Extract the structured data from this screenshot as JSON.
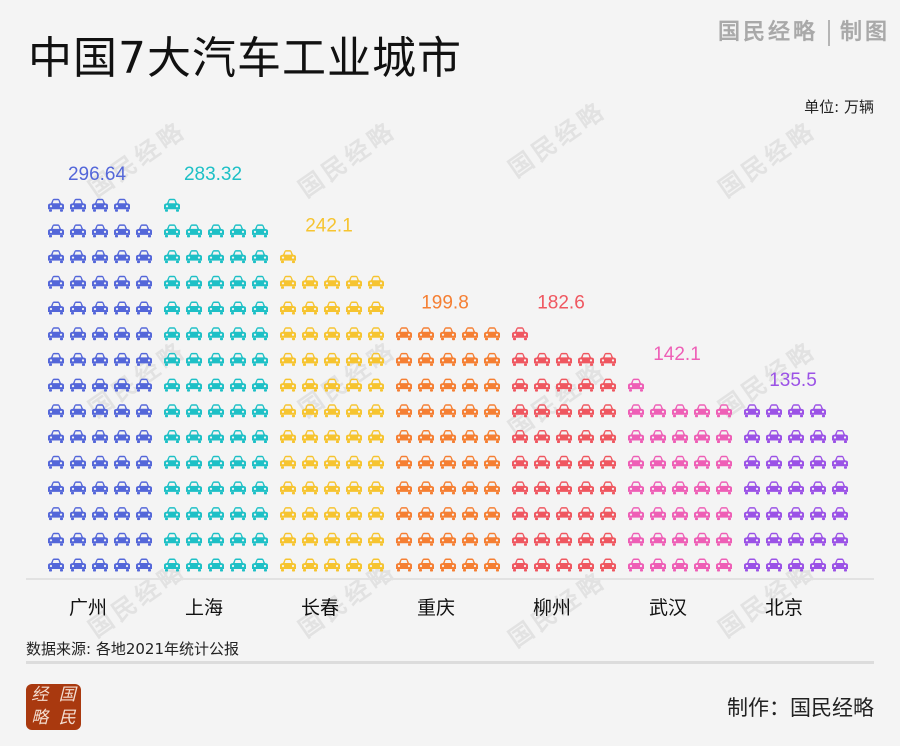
{
  "header": {
    "title": "中国7大汽车工业城市",
    "brand": "国民经略",
    "brand_suffix": "制图",
    "unit": "单位: 万辆"
  },
  "footer": {
    "source": "数据来源: 各地2021年统计公报",
    "maker": "制作：国民经略",
    "logo_chars": [
      "经",
      "国",
      "略",
      "民"
    ]
  },
  "watermark": "国民经略",
  "chart_data": {
    "type": "bar",
    "subtype": "pictogram",
    "title": "中国7大汽车工业城市",
    "ylabel": "万辆",
    "units_per_icon": 4,
    "icons_per_row": 5,
    "categories": [
      "广州",
      "上海",
      "长春",
      "重庆",
      "柳州",
      "武汉",
      "北京"
    ],
    "values": [
      296.64,
      283.32,
      242.1,
      199.8,
      182.6,
      142.1,
      135.5
    ],
    "value_labels": [
      "296.64",
      "283.32",
      "242.1",
      "199.8",
      "182.6",
      "142.1",
      "135.5"
    ],
    "colors": [
      "#5467d9",
      "#1ec0c6",
      "#f6c430",
      "#f57f33",
      "#ef5760",
      "#ee5fb6",
      "#9b52e6"
    ]
  }
}
